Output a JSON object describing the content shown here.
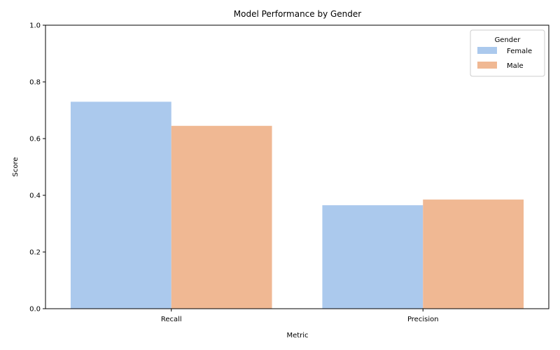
{
  "chart_data": {
    "type": "bar",
    "title": "Model Performance by Gender",
    "xlabel": "Metric",
    "ylabel": "Score",
    "categories": [
      "Recall",
      "Precision"
    ],
    "series": [
      {
        "name": "Female",
        "values": [
          0.73,
          0.365
        ],
        "color": "#abc9ed"
      },
      {
        "name": "Male",
        "values": [
          0.645,
          0.385
        ],
        "color": "#f0b893"
      }
    ],
    "ylim": [
      0,
      1.0
    ],
    "yticks": [
      "0.0",
      "0.2",
      "0.4",
      "0.6",
      "0.8",
      "1.0"
    ],
    "grid": false,
    "legend": {
      "title": "Gender",
      "placement": "top-right"
    }
  }
}
